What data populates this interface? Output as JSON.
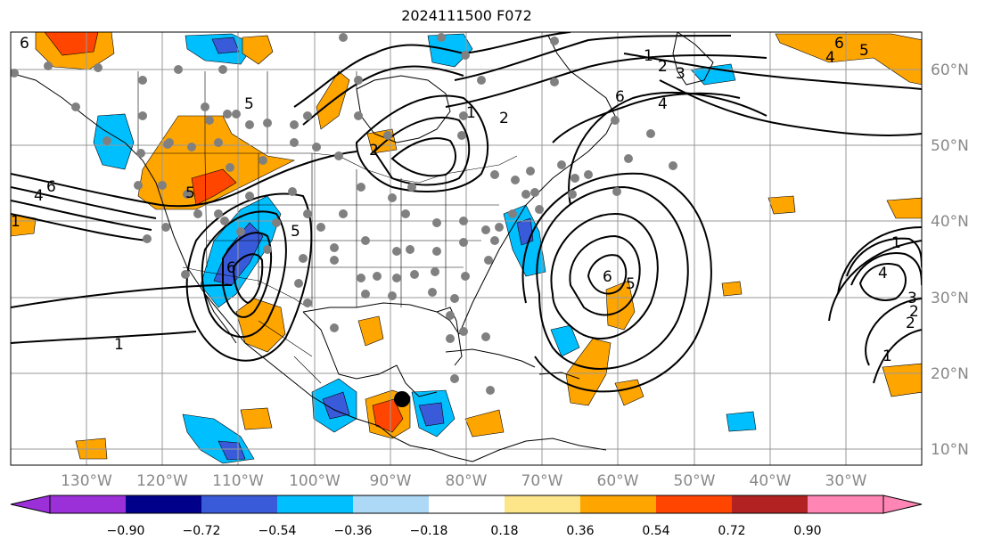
{
  "title": "2024111500 F072",
  "map": {
    "lat_labels": [
      "60°N",
      "50°N",
      "40°N",
      "30°N",
      "20°N",
      "10°N"
    ],
    "lon_labels": [
      "130°W",
      "120°W",
      "110°W",
      "100°W",
      "90°W",
      "80°W",
      "70°W",
      "60°W",
      "50°W",
      "40°W",
      "30°W"
    ],
    "contour_labels": [
      "6",
      "5",
      "1",
      "2",
      "3",
      "4",
      "6",
      "4",
      "5",
      "6",
      "4",
      "5",
      "1",
      "6",
      "5",
      "2",
      "1",
      "6",
      "2",
      "1",
      "2",
      "1",
      "6",
      "5",
      "4",
      "3",
      "2",
      "1"
    ]
  },
  "colorbar": {
    "levels": [
      "−0.90",
      "−0.72",
      "−0.54",
      "−0.36",
      "−0.18",
      "0.18",
      "0.36",
      "0.54",
      "0.72",
      "0.90"
    ],
    "colors": [
      "#9b30d9",
      "#00008b",
      "#3a5bd9",
      "#00bfff",
      "#add8f6",
      "#ffffff",
      "#fde68a",
      "#ffa500",
      "#ff4500",
      "#b22222",
      "#ff85b5"
    ]
  },
  "colors": {
    "grid": "#999999",
    "coast": "#000000",
    "station_marker": "#808080",
    "storm_marker": "#000000"
  }
}
